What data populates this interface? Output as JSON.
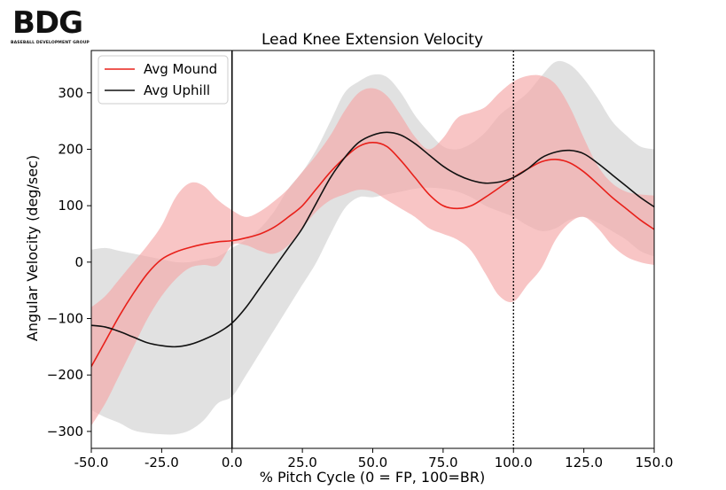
{
  "logo": {
    "text": "BDG",
    "subtitle": "BASEBALL DEVELOPMENT GROUP"
  },
  "chart_data": {
    "type": "line",
    "title": "Lead Knee Extension Velocity",
    "xlabel": "% Pitch Cycle (0 = FP, 100=BR)",
    "ylabel": "Angular Velocity (deg/sec)",
    "xlim": [
      -50,
      150
    ],
    "ylim": [
      -330,
      375
    ],
    "xticks": [
      -50,
      -25,
      0,
      25,
      50,
      75,
      100,
      125,
      150
    ],
    "xtick_labels": [
      "-50.0",
      "-25.0",
      "0.0",
      "25.0",
      "50.0",
      "75.0",
      "100.0",
      "125.0",
      "150.0"
    ],
    "yticks": [
      -300,
      -200,
      -100,
      0,
      100,
      200,
      300
    ],
    "ytick_labels": [
      "−300",
      "−200",
      "−100",
      "0",
      "100",
      "200",
      "300"
    ],
    "grid": false,
    "legend_position": "top-left",
    "vlines": [
      {
        "x": 0,
        "style": "solid"
      },
      {
        "x": 100,
        "style": "dotted"
      }
    ],
    "series": [
      {
        "name": "Avg Mound",
        "color": "#e8201a",
        "band_color": "#f4a6a6",
        "x": [
          -50,
          -45,
          -40,
          -35,
          -30,
          -25,
          -20,
          -15,
          -10,
          -5,
          0,
          5,
          10,
          15,
          20,
          25,
          30,
          35,
          40,
          45,
          50,
          55,
          60,
          65,
          70,
          75,
          80,
          85,
          90,
          95,
          100,
          105,
          110,
          115,
          120,
          125,
          130,
          135,
          140,
          145,
          150
        ],
        "y": [
          -185,
          -140,
          -95,
          -55,
          -20,
          5,
          18,
          26,
          32,
          36,
          38,
          43,
          50,
          62,
          80,
          100,
          130,
          160,
          185,
          205,
          212,
          205,
          180,
          150,
          120,
          100,
          95,
          100,
          115,
          132,
          150,
          165,
          178,
          182,
          176,
          160,
          138,
          115,
          95,
          75,
          58
        ],
        "upper": [
          -80,
          -60,
          -30,
          0,
          30,
          65,
          115,
          140,
          135,
          110,
          92,
          80,
          90,
          108,
          130,
          160,
          190,
          225,
          268,
          300,
          308,
          295,
          260,
          222,
          200,
          220,
          255,
          265,
          275,
          300,
          320,
          330,
          330,
          315,
          275,
          220,
          170,
          140,
          125,
          120,
          118
        ],
        "lower": [
          -290,
          -250,
          -200,
          -150,
          -100,
          -60,
          -30,
          -10,
          -5,
          -5,
          30,
          30,
          20,
          15,
          30,
          60,
          90,
          110,
          120,
          128,
          125,
          110,
          95,
          80,
          60,
          50,
          40,
          20,
          -20,
          -60,
          -70,
          -40,
          -10,
          40,
          70,
          80,
          60,
          30,
          10,
          0,
          -5
        ]
      },
      {
        "name": "Avg Uphill",
        "color": "#111111",
        "band_color": "#dcdcdc",
        "x": [
          -50,
          -45,
          -40,
          -35,
          -30,
          -25,
          -20,
          -15,
          -10,
          -5,
          0,
          5,
          10,
          15,
          20,
          25,
          30,
          35,
          40,
          45,
          50,
          55,
          60,
          65,
          70,
          75,
          80,
          85,
          90,
          95,
          100,
          105,
          110,
          115,
          120,
          125,
          130,
          135,
          140,
          145,
          150
        ],
        "y": [
          -112,
          -115,
          -123,
          -133,
          -143,
          -148,
          -150,
          -146,
          -137,
          -125,
          -108,
          -80,
          -45,
          -10,
          25,
          60,
          105,
          150,
          185,
          212,
          225,
          230,
          225,
          210,
          190,
          170,
          155,
          145,
          140,
          142,
          150,
          165,
          185,
          195,
          198,
          192,
          175,
          155,
          135,
          115,
          98
        ],
        "upper": [
          22,
          25,
          20,
          15,
          10,
          5,
          0,
          0,
          5,
          10,
          25,
          40,
          60,
          90,
          130,
          160,
          200,
          250,
          300,
          320,
          332,
          328,
          300,
          260,
          230,
          205,
          200,
          210,
          230,
          260,
          280,
          300,
          330,
          355,
          350,
          325,
          290,
          250,
          225,
          205,
          200
        ],
        "lower": [
          -262,
          -275,
          -285,
          -298,
          -303,
          -305,
          -305,
          -298,
          -280,
          -250,
          -238,
          -200,
          -160,
          -120,
          -80,
          -40,
          0,
          50,
          95,
          115,
          115,
          120,
          125,
          130,
          132,
          130,
          125,
          115,
          100,
          90,
          80,
          65,
          55,
          60,
          75,
          80,
          70,
          55,
          40,
          20,
          10
        ]
      }
    ]
  }
}
